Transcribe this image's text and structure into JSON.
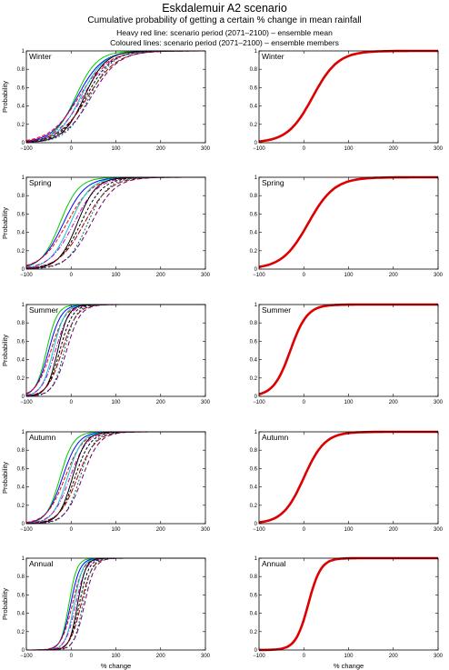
{
  "header": {
    "title": "Eskdalemuir A2 scenario",
    "subtitle": "Cumulative probability of getting a certain % change in mean rainfall",
    "line1": "Heavy red line: scenario period (2071–2100) – ensemble mean",
    "line2": "Coloured lines: scenario period (2071–2100) – ensemble members"
  },
  "axes": {
    "xlabel": "% change",
    "ylabel": "Probability",
    "xlim": [
      -100,
      300
    ],
    "ylim": [
      0,
      1
    ],
    "xticks": [
      "−100",
      "0",
      "100",
      "200",
      "300"
    ],
    "yticks": [
      "0",
      "0.2",
      "0.4",
      "0.6",
      "0.8",
      "1"
    ]
  },
  "member_colors": [
    "#00cc00",
    "#0000ff",
    "#ff0000",
    "#00cccc",
    "#cc00cc",
    "#000000",
    "#000000",
    "#990000",
    "#006666",
    "#660066"
  ],
  "mean_color": "#dd0000",
  "chart_data": [
    {
      "type": "line",
      "panel_label": "Winter",
      "grid": false,
      "xlim": [
        -100,
        300
      ],
      "ylim": [
        0,
        1
      ],
      "column": "members",
      "member_mean_range": [
        10,
        45
      ],
      "member_spread": 48
    },
    {
      "type": "line",
      "panel_label": "Winter",
      "grid": false,
      "xlim": [
        -100,
        300
      ],
      "ylim": [
        0,
        1
      ],
      "column": "ensemble_mean",
      "mean_percent_change": 20,
      "spread": 48
    },
    {
      "type": "line",
      "panel_label": "Spring",
      "grid": false,
      "xlim": [
        -100,
        300
      ],
      "ylim": [
        0,
        1
      ],
      "column": "members",
      "member_mean_range": [
        -25,
        45
      ],
      "member_spread": 42
    },
    {
      "type": "line",
      "panel_label": "Spring",
      "grid": false,
      "xlim": [
        -100,
        300
      ],
      "ylim": [
        0,
        1
      ],
      "column": "ensemble_mean",
      "mean_percent_change": 10,
      "spread": 50
    },
    {
      "type": "line",
      "panel_label": "Summer",
      "grid": false,
      "xlim": [
        -100,
        300
      ],
      "ylim": [
        0,
        1
      ],
      "column": "members",
      "member_mean_range": [
        -55,
        -10
      ],
      "member_spread": 24
    },
    {
      "type": "line",
      "panel_label": "Summer",
      "grid": false,
      "xlim": [
        -100,
        300
      ],
      "ylim": [
        0,
        1
      ],
      "column": "ensemble_mean",
      "mean_percent_change": -30,
      "spread": 32
    },
    {
      "type": "line",
      "panel_label": "Autumn",
      "grid": false,
      "xlim": [
        -100,
        300
      ],
      "ylim": [
        0,
        1
      ],
      "column": "members",
      "member_mean_range": [
        -25,
        25
      ],
      "member_spread": 30
    },
    {
      "type": "line",
      "panel_label": "Autumn",
      "grid": false,
      "xlim": [
        -100,
        300
      ],
      "ylim": [
        0,
        1
      ],
      "column": "ensemble_mean",
      "mean_percent_change": 0,
      "spread": 40
    },
    {
      "type": "line",
      "panel_label": "Annual",
      "grid": false,
      "xlim": [
        -100,
        300
      ],
      "ylim": [
        0,
        1
      ],
      "column": "members",
      "member_mean_range": [
        -5,
        30
      ],
      "member_spread": 18
    },
    {
      "type": "line",
      "panel_label": "Annual",
      "grid": false,
      "xlim": [
        -100,
        300
      ],
      "ylim": [
        0,
        1
      ],
      "column": "ensemble_mean",
      "mean_percent_change": 10,
      "spread": 24
    }
  ]
}
